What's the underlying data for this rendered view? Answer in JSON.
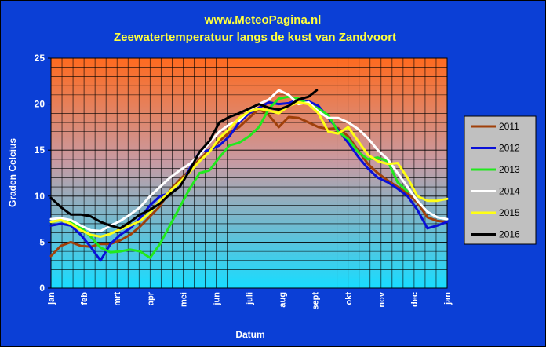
{
  "chart_data": {
    "type": "line",
    "title": "www.MeteoPagina.nl",
    "subtitle": "Zeewatertemperatuur langs de kust van Zandvoort",
    "xlabel": "Datum",
    "ylabel": "Graden Celcius",
    "ylim": [
      0,
      25
    ],
    "yticks": [
      "0",
      "5",
      "10",
      "15",
      "20",
      "25"
    ],
    "xlim": [
      0,
      12
    ],
    "month_labels": [
      "jan",
      "feb",
      "mrt",
      "apr",
      "mei",
      "jun",
      "juli",
      "aug",
      "sept",
      "okt",
      "nov",
      "dec",
      "jan"
    ],
    "grid": true,
    "legend_position": "right",
    "series": [
      {
        "name": "2011",
        "color": "#a0400a",
        "x": [
          0,
          0.3,
          0.6,
          0.9,
          1.2,
          1.5,
          1.8,
          2.1,
          2.4,
          2.7,
          3.0,
          3.3,
          3.6,
          3.9,
          4.2,
          4.5,
          4.8,
          5.1,
          5.4,
          5.7,
          6.0,
          6.3,
          6.6,
          6.9,
          7.2,
          7.5,
          7.8,
          8.1,
          8.4,
          8.7,
          9.0,
          9.3,
          9.6,
          9.9,
          10.2,
          10.5,
          10.8,
          11.1,
          11.4,
          11.7,
          12.0
        ],
        "y": [
          3.5,
          4.6,
          5.0,
          4.6,
          4.5,
          4.8,
          4.8,
          5.2,
          5.8,
          6.7,
          7.8,
          8.9,
          10.6,
          11.8,
          12.8,
          14.0,
          15.0,
          16.0,
          16.9,
          17.5,
          18.5,
          19.5,
          18.8,
          17.5,
          18.6,
          18.5,
          18.0,
          17.5,
          17.3,
          17.4,
          16.5,
          15.0,
          13.5,
          12.5,
          11.7,
          11.0,
          10.3,
          9.3,
          7.7,
          7.3,
          7.2
        ]
      },
      {
        "name": "2012",
        "color": "#0a10d8",
        "x": [
          0,
          0.3,
          0.6,
          0.9,
          1.2,
          1.5,
          1.8,
          2.1,
          2.4,
          2.7,
          3.0,
          3.3,
          3.6,
          3.9,
          4.2,
          4.5,
          4.8,
          5.1,
          5.4,
          5.7,
          6.0,
          6.3,
          6.6,
          6.9,
          7.2,
          7.5,
          7.8,
          8.1,
          8.4,
          8.7,
          9.0,
          9.3,
          9.6,
          9.9,
          10.2,
          10.5,
          10.8,
          11.1,
          11.4,
          11.7,
          12.0
        ],
        "y": [
          6.8,
          7.0,
          6.8,
          5.8,
          4.5,
          3.0,
          4.8,
          5.8,
          6.5,
          7.6,
          9.0,
          10.0,
          10.3,
          11.0,
          13.0,
          14.8,
          15.0,
          15.5,
          16.5,
          18.0,
          19.0,
          19.6,
          20.2,
          20.0,
          20.1,
          20.5,
          20.3,
          19.8,
          18.5,
          17.2,
          15.8,
          14.3,
          13.0,
          12.0,
          11.5,
          10.8,
          10.0,
          8.5,
          6.5,
          6.8,
          7.2
        ]
      },
      {
        "name": "2013",
        "color": "#22e81e",
        "x": [
          0,
          0.3,
          0.6,
          0.9,
          1.2,
          1.5,
          1.8,
          2.1,
          2.4,
          2.7,
          3.0,
          3.3,
          3.6,
          3.9,
          4.2,
          4.5,
          4.8,
          5.1,
          5.4,
          5.7,
          6.0,
          6.3,
          6.6,
          6.9,
          7.2,
          7.5,
          7.8,
          8.1,
          8.4,
          8.7,
          9.0,
          9.3,
          9.6,
          9.9,
          10.2,
          10.5,
          10.8
        ],
        "y": [
          7.2,
          7.4,
          7.2,
          6.6,
          5.6,
          4.4,
          3.9,
          4.0,
          4.2,
          4.0,
          3.3,
          4.8,
          6.8,
          8.8,
          10.8,
          12.5,
          12.8,
          14.2,
          15.5,
          15.8,
          16.5,
          17.5,
          19.5,
          20.6,
          20.8,
          20.6,
          20.0,
          19.5,
          18.8,
          17.0,
          16.2,
          14.8,
          14.0,
          14.2,
          13.8,
          11.5,
          10.5
        ]
      },
      {
        "name": "2014",
        "color": "#ffffff",
        "x": [
          0,
          0.3,
          0.6,
          0.9,
          1.2,
          1.5,
          1.8,
          2.1,
          2.4,
          2.7,
          3.0,
          3.3,
          3.6,
          3.9,
          4.2,
          4.5,
          4.8,
          5.1,
          5.4,
          5.7,
          6.0,
          6.3,
          6.6,
          6.9,
          7.2,
          7.5,
          7.8,
          8.1,
          8.4,
          8.7,
          9.0,
          9.3,
          9.6,
          9.9,
          10.2,
          10.5,
          10.8,
          11.1,
          11.4,
          11.7,
          12.0
        ],
        "y": [
          7.5,
          7.6,
          7.4,
          6.8,
          6.3,
          6.2,
          6.8,
          7.3,
          8.0,
          8.8,
          10.0,
          11.0,
          12.0,
          12.8,
          13.5,
          14.5,
          15.8,
          17.0,
          17.8,
          18.2,
          19.3,
          20.0,
          20.5,
          21.5,
          21.0,
          20.0,
          20.2,
          19.2,
          18.5,
          18.5,
          18.0,
          17.3,
          16.3,
          15.0,
          14.0,
          12.5,
          11.0,
          9.5,
          8.3,
          7.7,
          7.5
        ]
      },
      {
        "name": "2015",
        "color": "#ffff14",
        "x": [
          0,
          0.3,
          0.6,
          0.9,
          1.2,
          1.5,
          1.8,
          2.1,
          2.4,
          2.7,
          3.0,
          3.3,
          3.6,
          3.9,
          4.2,
          4.5,
          4.8,
          5.1,
          5.4,
          5.7,
          6.0,
          6.3,
          6.6,
          6.9,
          7.2,
          7.5,
          7.8,
          8.1,
          8.4,
          8.7,
          9.0,
          9.3,
          9.6,
          9.9,
          10.2,
          10.5,
          10.8,
          11.1,
          11.4,
          11.7,
          12.0
        ],
        "y": [
          7.2,
          7.4,
          7.0,
          6.3,
          5.8,
          5.6,
          5.9,
          6.4,
          6.8,
          7.3,
          8.2,
          9.5,
          10.5,
          11.5,
          12.6,
          13.8,
          14.8,
          16.3,
          17.3,
          18.5,
          19.2,
          19.5,
          19.3,
          19.0,
          19.8,
          20.2,
          20.0,
          19.0,
          17.0,
          16.8,
          17.5,
          16.0,
          14.5,
          13.8,
          13.5,
          13.6,
          12.0,
          10.0,
          9.5,
          9.5,
          9.7
        ]
      },
      {
        "name": "2016",
        "color": "#000000",
        "x": [
          0,
          0.3,
          0.6,
          0.9,
          1.2,
          1.5,
          1.8,
          2.1,
          2.4,
          2.7,
          3.0,
          3.3,
          3.6,
          3.9,
          4.2,
          4.5,
          4.8,
          5.1,
          5.4,
          5.7,
          6.0,
          6.3,
          6.6,
          6.9,
          7.2,
          7.5,
          7.8,
          8.05
        ],
        "y": [
          9.8,
          8.8,
          8.0,
          8.0,
          7.8,
          7.2,
          6.8,
          6.5,
          7.2,
          8.0,
          8.5,
          9.2,
          10.2,
          11.0,
          12.8,
          14.8,
          16.0,
          18.0,
          18.6,
          19.0,
          19.5,
          20.0,
          19.6,
          19.4,
          19.8,
          20.5,
          20.8,
          21.5
        ]
      }
    ]
  }
}
